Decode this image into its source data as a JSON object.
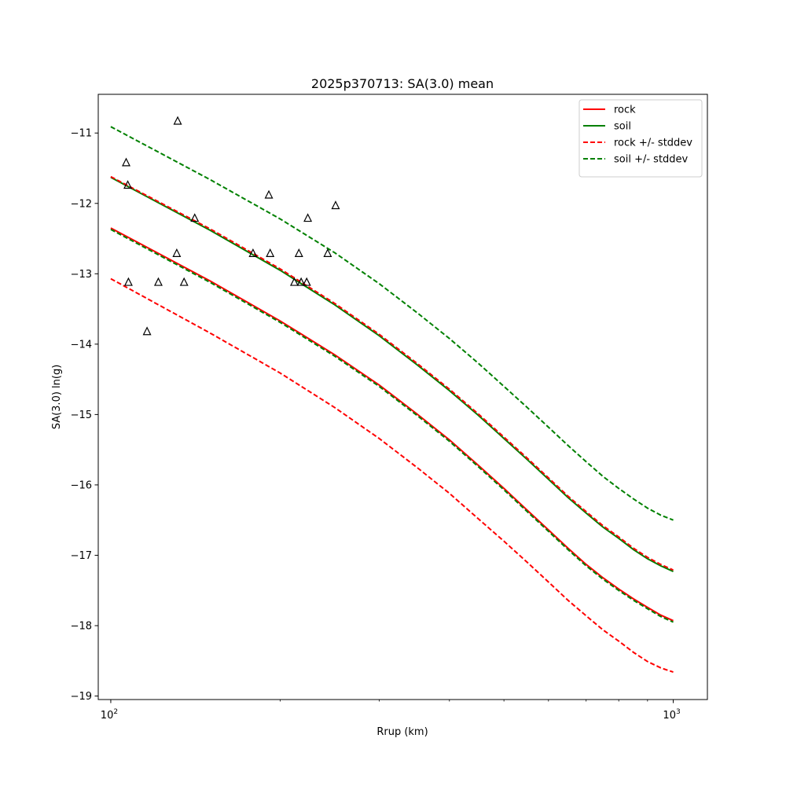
{
  "chart_data": {
    "type": "line",
    "title": "2025p370713: SA(3.0) mean",
    "xlabel": "Rrup (km)",
    "ylabel": "SA(3.0) ln(g)",
    "xscale": "log",
    "xlim": [
      95,
      1150
    ],
    "ylim": [
      -19.05,
      -10.45
    ],
    "x_ticks": [
      {
        "value": 100,
        "base": "10",
        "exp": "2"
      },
      {
        "value": 1000,
        "base": "10",
        "exp": "3"
      }
    ],
    "y_ticks": [
      {
        "value": -11,
        "label": "−11"
      },
      {
        "value": -12,
        "label": "−12"
      },
      {
        "value": -13,
        "label": "−13"
      },
      {
        "value": -14,
        "label": "−14"
      },
      {
        "value": -15,
        "label": "−15"
      },
      {
        "value": -16,
        "label": "−16"
      },
      {
        "value": -17,
        "label": "−17"
      },
      {
        "value": -18,
        "label": "−18"
      },
      {
        "value": -19,
        "label": "−19"
      }
    ],
    "grid": false,
    "legend_position": "top-right",
    "colors": {
      "rock": "#ff0000",
      "soil": "#008000",
      "observations": "#000000"
    },
    "x": [
      100,
      150,
      200,
      250,
      300,
      350,
      400,
      450,
      500,
      550,
      600,
      650,
      700,
      750,
      800,
      850,
      900,
      950,
      1000
    ],
    "series": [
      {
        "id": "rock_mean",
        "name": "rock",
        "color": "#ff0000",
        "dash": "solid",
        "legend": true,
        "values": [
          -12.35,
          -13.1,
          -13.67,
          -14.15,
          -14.58,
          -14.99,
          -15.36,
          -15.72,
          -16.05,
          -16.36,
          -16.64,
          -16.9,
          -17.13,
          -17.32,
          -17.48,
          -17.62,
          -17.74,
          -17.85,
          -17.93
        ]
      },
      {
        "id": "soil_mean",
        "name": "soil",
        "color": "#008000",
        "dash": "solid",
        "legend": true,
        "values": [
          -11.63,
          -12.38,
          -12.95,
          -13.44,
          -13.88,
          -14.29,
          -14.66,
          -15.01,
          -15.34,
          -15.64,
          -15.92,
          -16.18,
          -16.4,
          -16.6,
          -16.76,
          -16.92,
          -17.05,
          -17.15,
          -17.23
        ]
      },
      {
        "id": "rock_plus",
        "name": "rock +/- stddev",
        "color": "#ff0000",
        "dash": "dashed",
        "legend": true,
        "values": [
          -11.62,
          -12.36,
          -12.93,
          -13.42,
          -13.86,
          -14.27,
          -14.64,
          -14.99,
          -15.32,
          -15.62,
          -15.9,
          -16.16,
          -16.38,
          -16.58,
          -16.74,
          -16.9,
          -17.03,
          -17.13,
          -17.21
        ]
      },
      {
        "id": "rock_minus",
        "name": "rock +/- stddev",
        "color": "#ff0000",
        "dash": "dashed",
        "legend": false,
        "values": [
          -13.07,
          -13.84,
          -14.41,
          -14.9,
          -15.34,
          -15.75,
          -16.12,
          -16.48,
          -16.8,
          -17.1,
          -17.38,
          -17.64,
          -17.86,
          -18.06,
          -18.22,
          -18.38,
          -18.51,
          -18.6,
          -18.66
        ]
      },
      {
        "id": "soil_plus",
        "name": "soil +/- stddev",
        "color": "#008000",
        "dash": "dashed",
        "legend": true,
        "values": [
          -10.91,
          -11.66,
          -12.22,
          -12.7,
          -13.14,
          -13.55,
          -13.92,
          -14.27,
          -14.6,
          -14.9,
          -15.18,
          -15.44,
          -15.67,
          -15.88,
          -16.05,
          -16.2,
          -16.33,
          -16.43,
          -16.5
        ]
      },
      {
        "id": "soil_minus",
        "name": "soil +/- stddev",
        "color": "#008000",
        "dash": "dashed",
        "legend": false,
        "values": [
          -12.37,
          -13.12,
          -13.69,
          -14.17,
          -14.6,
          -15.01,
          -15.38,
          -15.74,
          -16.07,
          -16.38,
          -16.66,
          -16.92,
          -17.15,
          -17.34,
          -17.5,
          -17.64,
          -17.76,
          -17.87,
          -17.95
        ]
      }
    ],
    "observations": [
      {
        "x": 106.5,
        "y": -11.42
      },
      {
        "x": 107.2,
        "y": -11.74
      },
      {
        "x": 107.5,
        "y": -13.12
      },
      {
        "x": 116.0,
        "y": -13.82
      },
      {
        "x": 121.5,
        "y": -13.12
      },
      {
        "x": 131.0,
        "y": -12.71
      },
      {
        "x": 131.5,
        "y": -10.83
      },
      {
        "x": 135.0,
        "y": -13.12
      },
      {
        "x": 141.0,
        "y": -12.21
      },
      {
        "x": 179.0,
        "y": -12.71
      },
      {
        "x": 191.0,
        "y": -11.88
      },
      {
        "x": 192.0,
        "y": -12.71
      },
      {
        "x": 212.0,
        "y": -13.12
      },
      {
        "x": 216.0,
        "y": -12.71
      },
      {
        "x": 218.0,
        "y": -13.12
      },
      {
        "x": 223.0,
        "y": -13.12
      },
      {
        "x": 224.0,
        "y": -12.21
      },
      {
        "x": 243.0,
        "y": -12.71
      },
      {
        "x": 251.0,
        "y": -12.03
      }
    ]
  }
}
